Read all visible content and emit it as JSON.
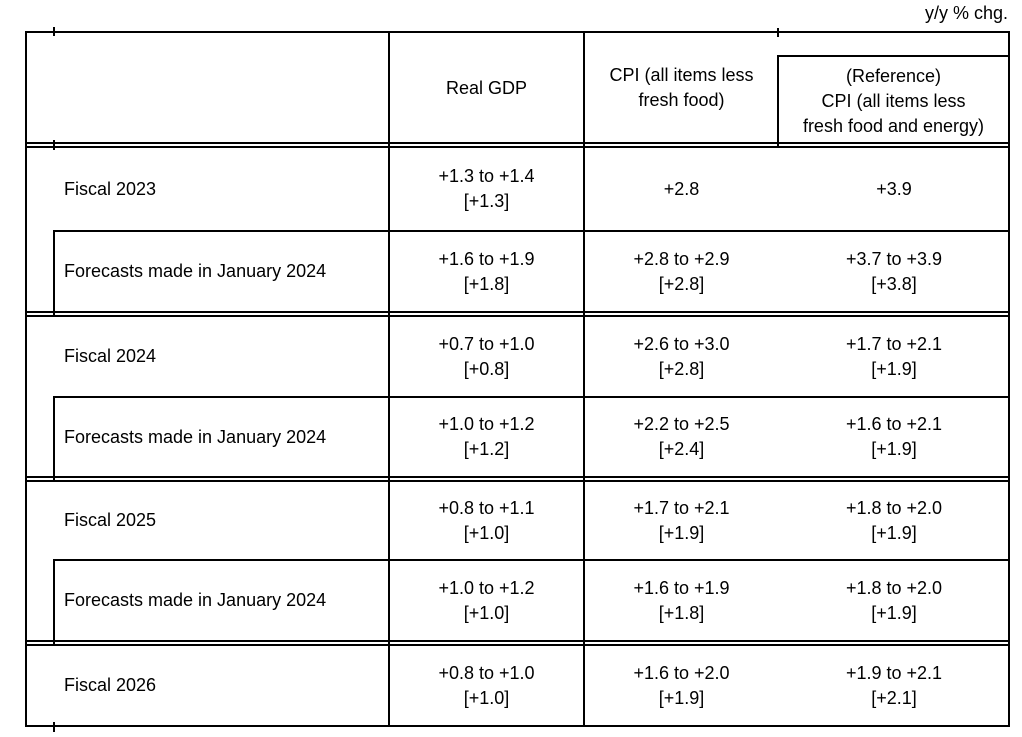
{
  "unit_note": "y/y % chg.",
  "colors": {
    "background": "#ffffff",
    "text": "#000000",
    "border": "#000000"
  },
  "table": {
    "headers": [
      "Real GDP",
      "CPI (all items less\nfresh food)",
      "(Reference)\nCPI (all items less\nfresh food and energy)"
    ],
    "rows": [
      {
        "label": "Fiscal 2023",
        "values": [
          "+1.3 to +1.4\n[+1.3]",
          "+2.8",
          "+3.9"
        ]
      },
      {
        "label": "Forecasts made in January 2024",
        "values": [
          "+1.6 to +1.9\n[+1.8]",
          "+2.8 to +2.9\n[+2.8]",
          "+3.7 to +3.9\n[+3.8]"
        ]
      },
      {
        "label": "Fiscal 2024",
        "values": [
          "+0.7 to +1.0\n[+0.8]",
          "+2.6 to +3.0\n[+2.8]",
          "+1.7 to +2.1\n[+1.9]"
        ]
      },
      {
        "label": "Forecasts made in January 2024",
        "values": [
          "+1.0 to +1.2\n[+1.2]",
          "+2.2 to +2.5\n[+2.4]",
          "+1.6 to +2.1\n[+1.9]"
        ]
      },
      {
        "label": "Fiscal 2025",
        "values": [
          "+0.8 to +1.1\n[+1.0]",
          "+1.7 to +2.1\n[+1.9]",
          "+1.8 to +2.0\n[+1.9]"
        ]
      },
      {
        "label": "Forecasts made in January 2024",
        "values": [
          "+1.0 to +1.2\n[+1.0]",
          "+1.6 to +1.9\n[+1.8]",
          "+1.8 to +2.0\n[+1.9]"
        ]
      },
      {
        "label": "Fiscal 2026",
        "values": [
          "+0.8 to +1.0\n[+1.0]",
          "+1.6 to +2.0\n[+1.9]",
          "+1.9 to +2.1\n[+2.1]"
        ]
      }
    ]
  }
}
